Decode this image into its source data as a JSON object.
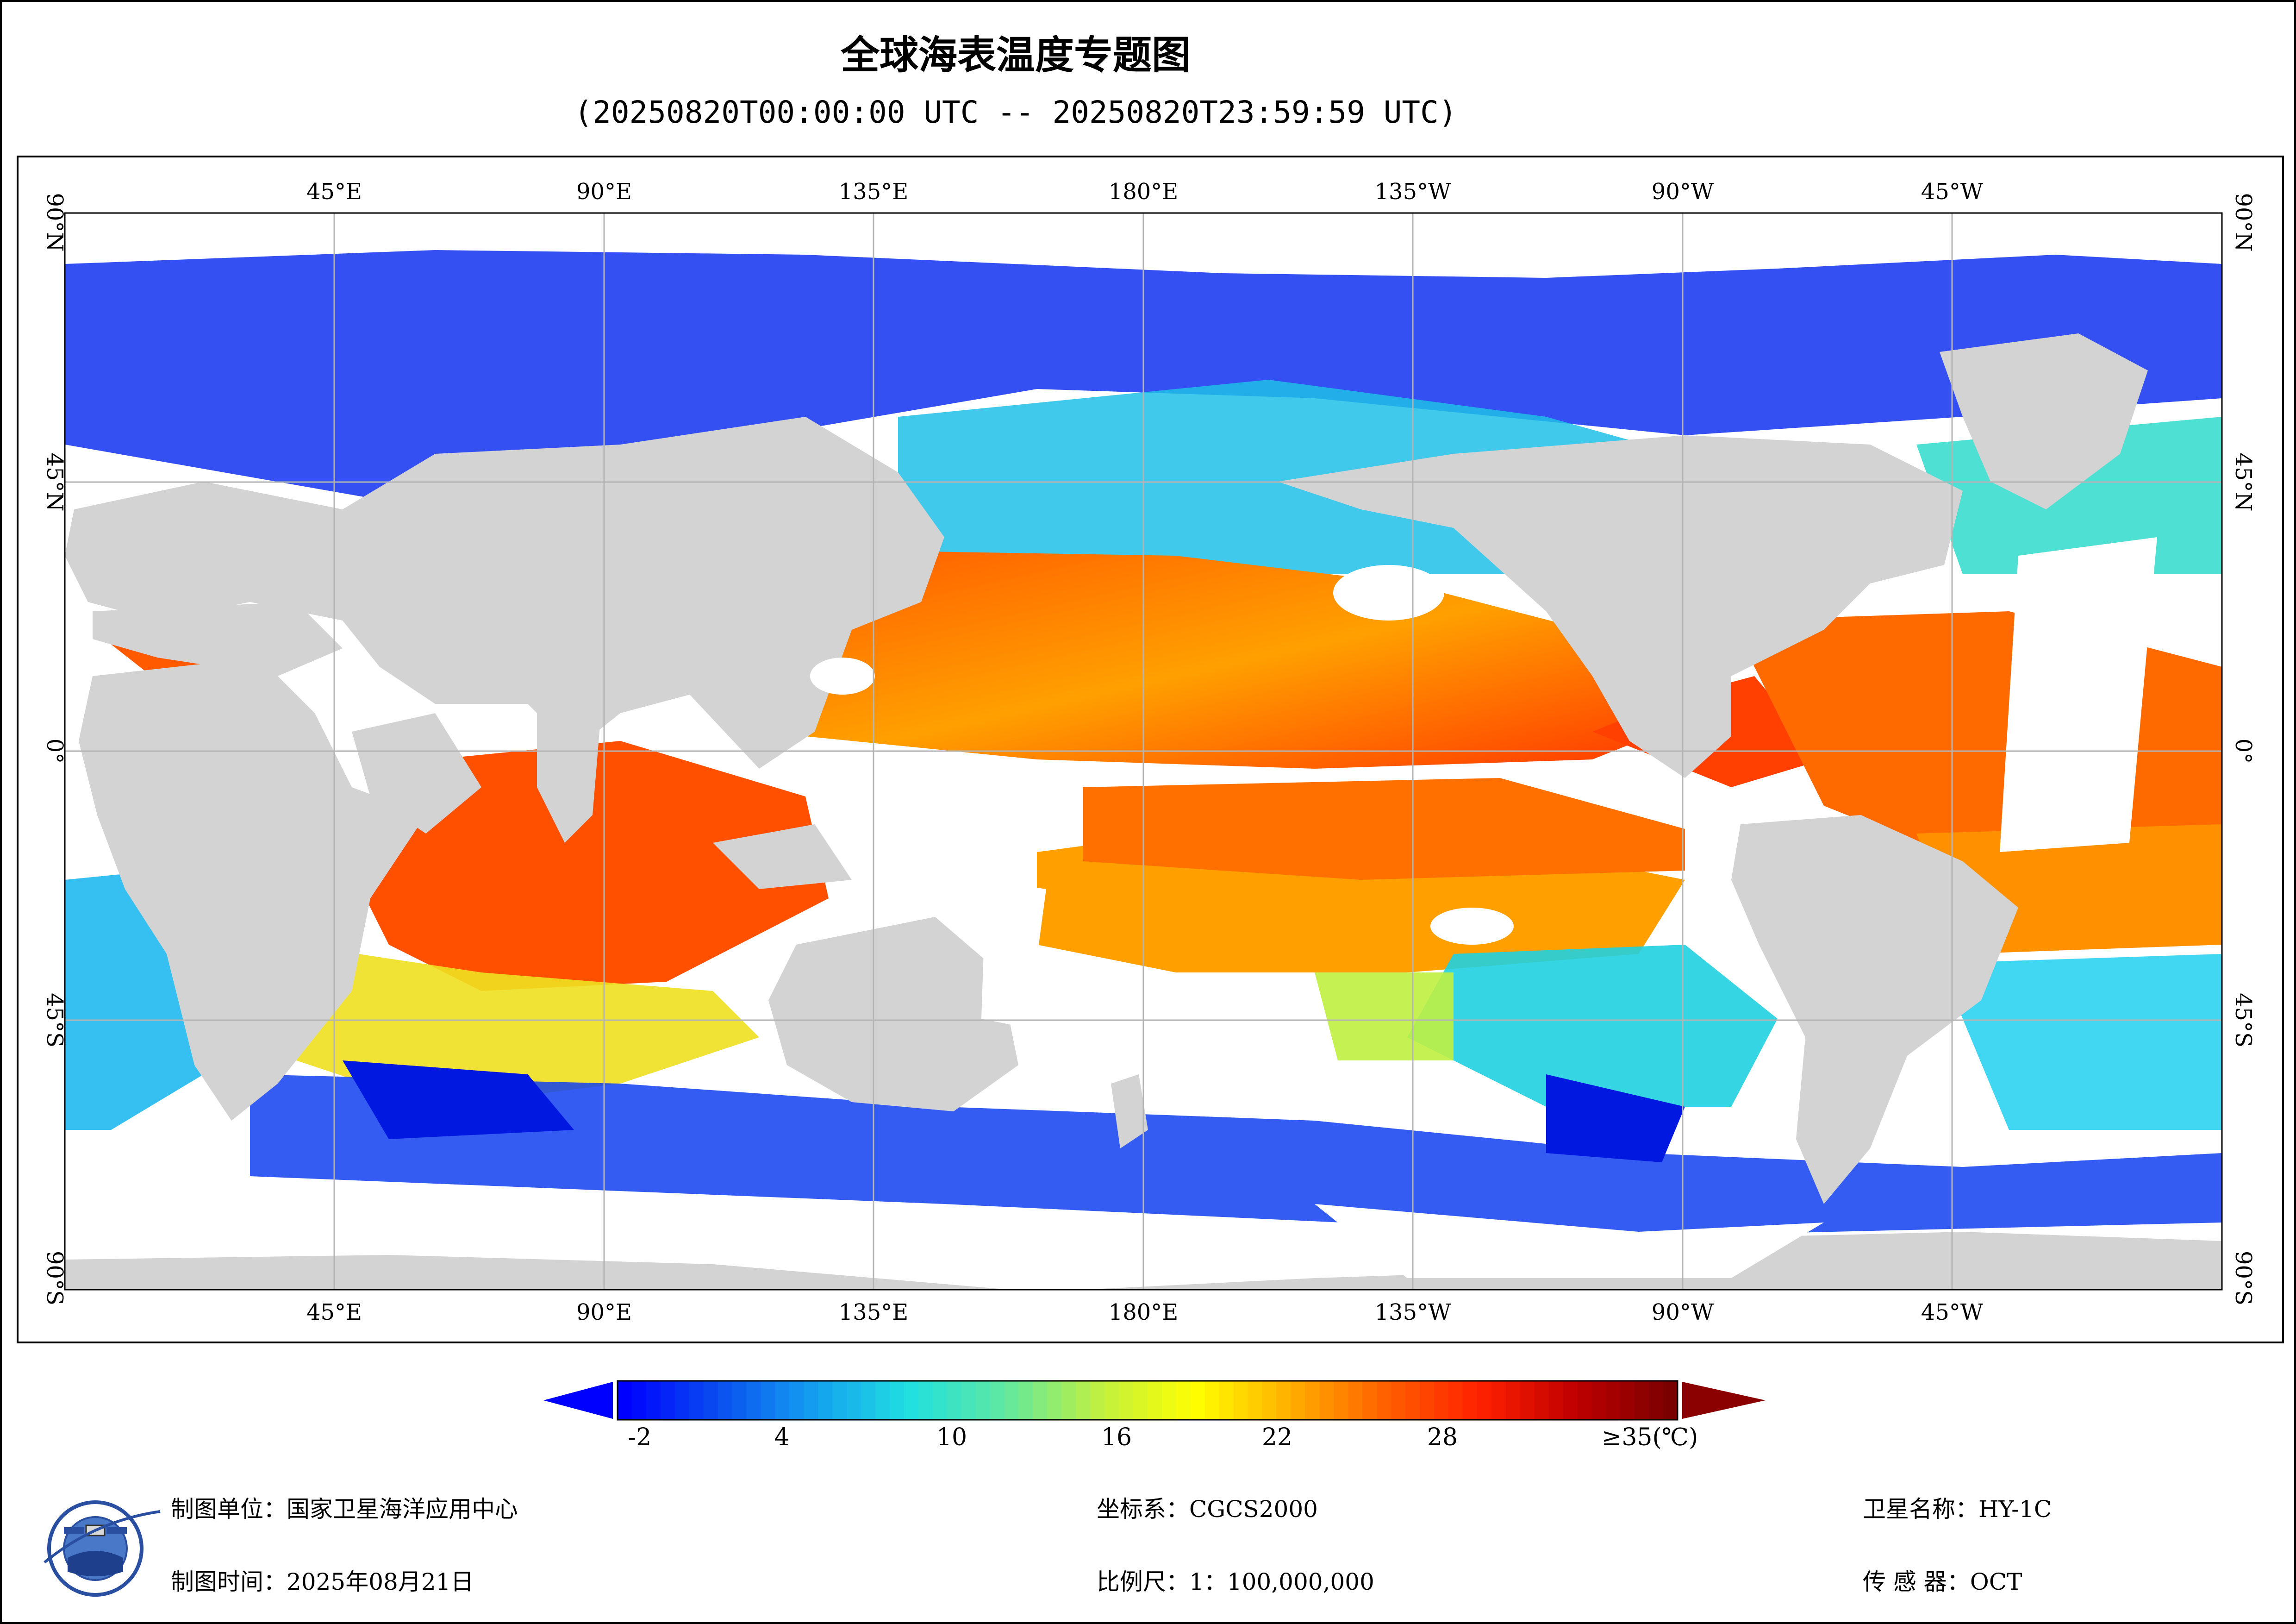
{
  "header": {
    "title": "全球海表温度专题图",
    "subtitle": "(20250820T00:00:00 UTC -- 20250820T23:59:59 UTC)"
  },
  "map": {
    "top_lon_labels": [
      "45°E",
      "90°E",
      "135°E",
      "180°E",
      "135°W",
      "90°W",
      "45°W"
    ],
    "bottom_lon_labels": [
      "45°E",
      "90°E",
      "135°E",
      "180°E",
      "135°W",
      "90°W",
      "45°W"
    ],
    "left_lat_labels": [
      "90°N",
      "45°N",
      "0°",
      "45°S",
      "90°S"
    ],
    "right_lat_labels": [
      "90°N",
      "45°N",
      "0°",
      "45°S",
      "90°S"
    ],
    "land_color": "#d3d3d3",
    "no_data_color": "#ffffff",
    "grid_color": "#b4b4b4"
  },
  "colorbar": {
    "tick_labels": [
      "-2",
      "4",
      "10",
      "16",
      "22",
      "28",
      "≥35(℃)"
    ],
    "colors": [
      "#0000ff",
      "#0a50f0",
      "#14a0f0",
      "#20e0e0",
      "#60e8a0",
      "#c0f040",
      "#ffff00",
      "#ffb000",
      "#ff6000",
      "#ff2000",
      "#c00000",
      "#7a0000"
    ],
    "under_color": "#0000ff",
    "over_color": "#8b0000"
  },
  "footer": {
    "unit": "制图单位：国家卫星海洋应用中心",
    "time": "制图时间：2025年08月21日",
    "crs": "坐标系：CGCS2000",
    "scale": "比例尺：1：100,000,000",
    "satellite": "卫星名称：HY-1C",
    "sensor": "传 感 器：OCT"
  }
}
